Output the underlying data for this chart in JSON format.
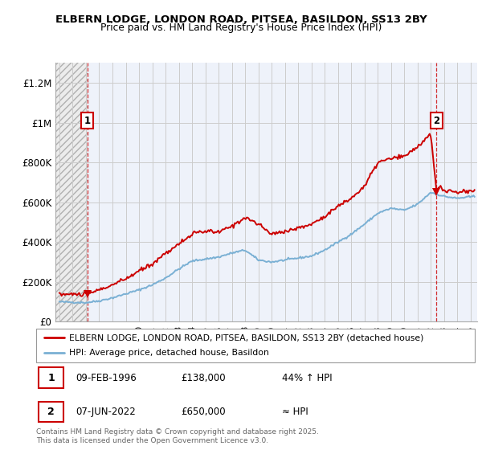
{
  "title1": "ELBERN LODGE, LONDON ROAD, PITSEA, BASILDON, SS13 2BY",
  "title2": "Price paid vs. HM Land Registry's House Price Index (HPI)",
  "ylabel_ticks": [
    "£0",
    "£200K",
    "£400K",
    "£600K",
    "£800K",
    "£1M",
    "£1.2M"
  ],
  "ytick_vals": [
    0,
    200000,
    400000,
    600000,
    800000,
    1000000,
    1200000
  ],
  "ylim": [
    0,
    1300000
  ],
  "xlim_start": 1993.7,
  "xlim_end": 2025.5,
  "legend_line1": "ELBERN LODGE, LONDON ROAD, PITSEA, BASILDON, SS13 2BY (detached house)",
  "legend_line2": "HPI: Average price, detached house, Basildon",
  "footnote": "Contains HM Land Registry data © Crown copyright and database right 2025.\nThis data is licensed under the Open Government Licence v3.0.",
  "point1_label": "1",
  "point1_date": "09-FEB-1996",
  "point1_price": "£138,000",
  "point1_hpi": "44% ↑ HPI",
  "point1_x": 1996.11,
  "point1_y": 138000,
  "point2_label": "2",
  "point2_date": "07-JUN-2022",
  "point2_price": "£650,000",
  "point2_hpi": "≈ HPI",
  "point2_x": 2022.44,
  "point2_y": 650000,
  "red_color": "#cc0000",
  "blue_color": "#7ab0d4",
  "grid_color": "#cccccc",
  "bg_blue": "#eef2fa",
  "bg_hatch_face": "#e8e8e8",
  "label_box_color": "#cc0000"
}
